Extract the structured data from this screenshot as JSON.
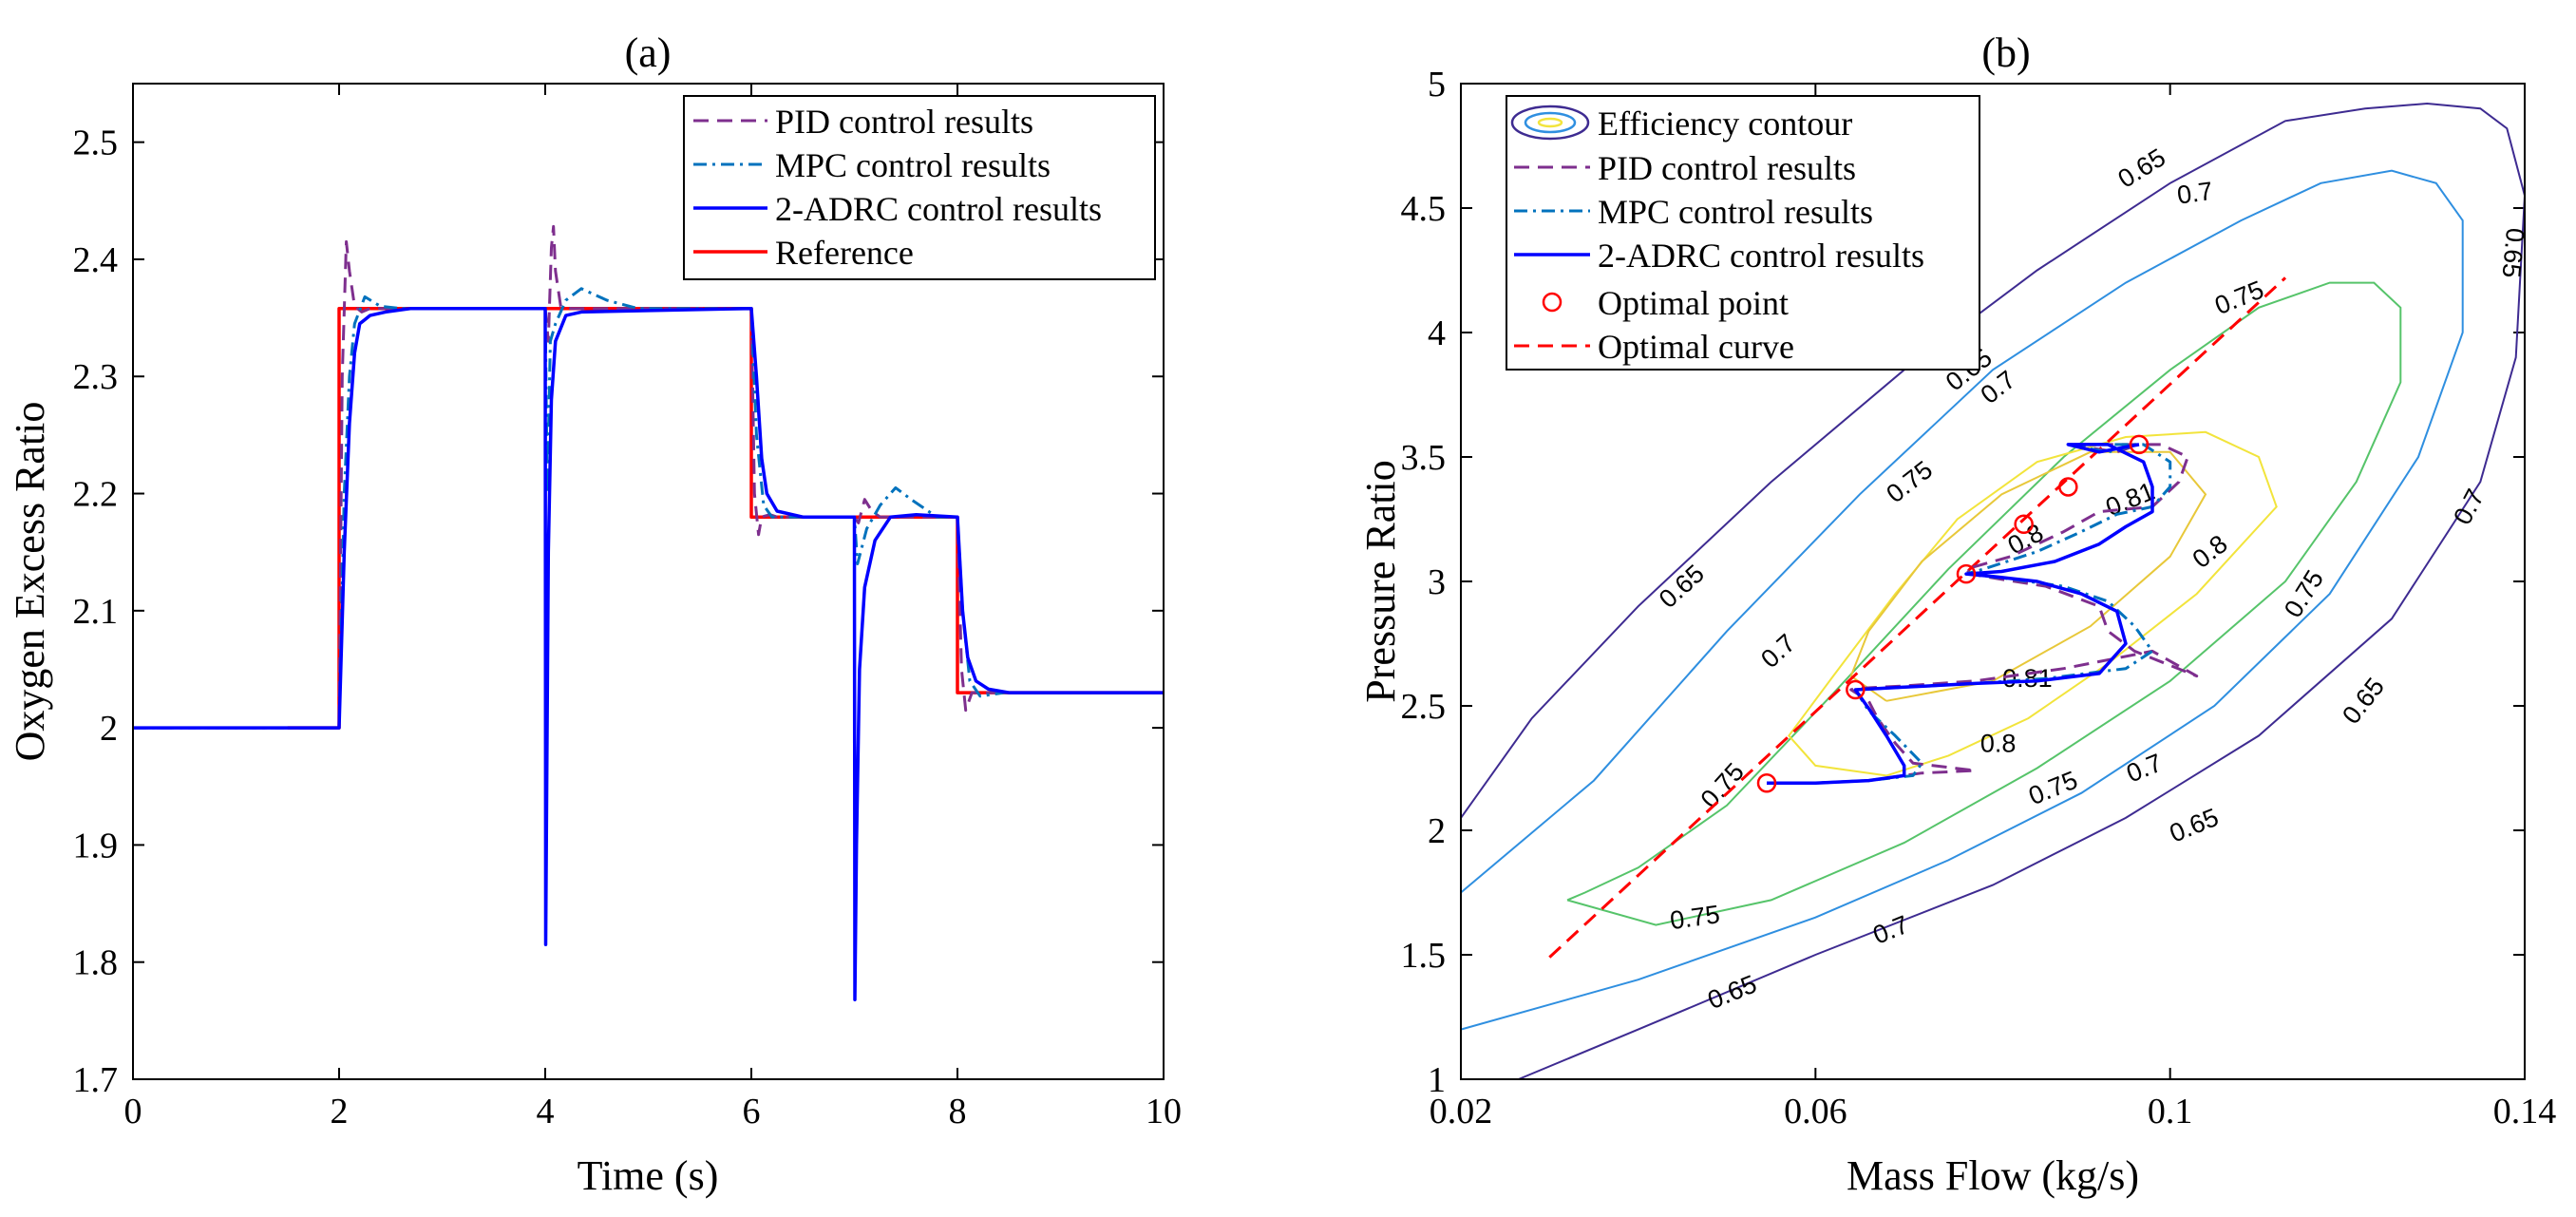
{
  "colors": {
    "pid": "#7E2F8E",
    "mpc": "#0072BD",
    "adrc": "#0000FF",
    "reference": "#FF0000",
    "optimal": "#FF0000",
    "contour_065": "#3E2B91",
    "contour_07": "#2F8FE0",
    "contour_075": "#56C46A",
    "contour_08": "#F2E43C",
    "contour_081": "#E8C83A"
  },
  "chart_data": [
    {
      "type": "line",
      "title": "(a)",
      "xlabel": "Time (s)",
      "ylabel": "Oxygen Excess Ratio",
      "xlim": [
        0,
        10
      ],
      "ylim": [
        1.7,
        2.55
      ],
      "xticks": [
        "0",
        "2",
        "4",
        "6",
        "8",
        "10"
      ],
      "yticks": [
        "1.7",
        "1.8",
        "1.9",
        "2",
        "2.1",
        "2.2",
        "2.3",
        "2.4",
        "2.5"
      ],
      "legend": [
        "PID control results",
        "MPC control results",
        "2-ADRC control results",
        "Reference"
      ],
      "legend_position": "top-right",
      "series": [
        {
          "name": "PID control results",
          "style": "dashed",
          "x": [
            0,
            2,
            2.03,
            2.07,
            2.1,
            2.15,
            2.22,
            2.3,
            4,
            4.03,
            4.06,
            4.08,
            4.1,
            4.15,
            4.25,
            6,
            6.03,
            6.07,
            6.1,
            6.18,
            6.25,
            7,
            7.04,
            7.1,
            7.17,
            7.25,
            7.4,
            8,
            8.04,
            8.08,
            8.14,
            8.25,
            10
          ],
          "y": [
            2,
            2,
            2.3,
            2.415,
            2.39,
            2.36,
            2.355,
            2.358,
            2.358,
            2.33,
            2.41,
            2.428,
            2.39,
            2.36,
            2.358,
            2.358,
            2.2,
            2.165,
            2.18,
            2.182,
            2.18,
            2.18,
            2.175,
            2.195,
            2.185,
            2.18,
            2.18,
            2.18,
            2.05,
            2.015,
            2.03,
            2.03,
            2.03
          ]
        },
        {
          "name": "MPC control results",
          "style": "dashdot",
          "x": [
            0,
            2,
            2.05,
            2.1,
            2.15,
            2.25,
            2.4,
            2.6,
            4,
            4.02,
            4.05,
            4.1,
            4.2,
            4.35,
            4.6,
            4.9,
            6,
            6.05,
            6.12,
            6.2,
            6.35,
            7,
            7.03,
            7.12,
            7.25,
            7.4,
            7.55,
            7.8,
            8,
            8.05,
            8.12,
            8.22,
            8.45,
            10
          ],
          "y": [
            2,
            2,
            2.2,
            2.3,
            2.345,
            2.368,
            2.36,
            2.358,
            2.358,
            2.2,
            2.33,
            2.345,
            2.365,
            2.375,
            2.365,
            2.358,
            2.358,
            2.25,
            2.19,
            2.18,
            2.18,
            2.18,
            2.14,
            2.17,
            2.19,
            2.205,
            2.195,
            2.18,
            2.18,
            2.1,
            2.04,
            2.027,
            2.03,
            2.03
          ]
        },
        {
          "name": "2-ADRC control results",
          "style": "solid",
          "x": [
            0,
            2,
            2.05,
            2.1,
            2.15,
            2.2,
            2.3,
            2.45,
            2.7,
            4,
            4.005,
            4.015,
            4.03,
            4.06,
            4.1,
            4.2,
            4.35,
            6,
            6.05,
            6.1,
            6.15,
            6.25,
            6.5,
            7,
            7.005,
            7.02,
            7.05,
            7.1,
            7.2,
            7.35,
            7.6,
            8,
            8.05,
            8.1,
            8.18,
            8.3,
            8.5,
            10
          ],
          "y": [
            2,
            2,
            2.15,
            2.26,
            2.32,
            2.345,
            2.352,
            2.355,
            2.358,
            2.358,
            1.815,
            1.95,
            2.15,
            2.28,
            2.33,
            2.352,
            2.355,
            2.358,
            2.3,
            2.23,
            2.2,
            2.185,
            2.18,
            2.18,
            1.768,
            1.9,
            2.05,
            2.12,
            2.16,
            2.18,
            2.182,
            2.18,
            2.1,
            2.06,
            2.04,
            2.033,
            2.03,
            2.03
          ]
        },
        {
          "name": "Reference",
          "style": "solid",
          "x": [
            1.5,
            2,
            2,
            6,
            6,
            8,
            8,
            10
          ],
          "y": [
            2,
            2,
            2.358,
            2.358,
            2.18,
            2.18,
            2.03,
            2.03
          ]
        }
      ]
    },
    {
      "type": "line",
      "title": "(b)",
      "xlabel": "Mass Flow (kg/s)",
      "ylabel": "Pressure Ratio",
      "xlim": [
        0.02,
        0.14
      ],
      "ylim": [
        1,
        5
      ],
      "xticks": [
        "0.02",
        "0.06",
        "0.1",
        "0.14"
      ],
      "yticks": [
        "1",
        "1.5",
        "2",
        "2.5",
        "3",
        "3.5",
        "4",
        "4.5",
        "5"
      ],
      "legend": [
        "Efficiency contour",
        "PID control results",
        "MPC control results",
        "2-ADRC control results",
        "Optimal point",
        "Optimal curve"
      ],
      "legend_position": "top-left",
      "contours": [
        {
          "level": "0.65",
          "label_text": [
            "0.65",
            "0.65",
            "0.65",
            "0.65",
            "0.65",
            "0.65",
            "0.65"
          ],
          "x": [
            0.0265,
            0.04,
            0.06,
            0.08,
            0.095,
            0.11,
            0.125,
            0.135,
            0.139,
            0.14,
            0.138,
            0.135,
            0.129,
            0.122,
            0.113,
            0.1,
            0.085,
            0.07,
            0.055,
            0.04,
            0.028,
            0.02
          ],
          "y": [
            1,
            1.2,
            1.5,
            1.78,
            2.05,
            2.38,
            2.85,
            3.4,
            3.9,
            4.55,
            4.82,
            4.9,
            4.92,
            4.9,
            4.85,
            4.6,
            4.25,
            3.85,
            3.4,
            2.9,
            2.45,
            2.05
          ]
        },
        {
          "level": "0.7",
          "label_text": [
            "0.7",
            "0.7",
            "0.7",
            "0.7",
            "0.7",
            "0.7"
          ],
          "x": [
            0.02,
            0.04,
            0.06,
            0.075,
            0.09,
            0.105,
            0.118,
            0.128,
            0.133,
            0.133,
            0.13,
            0.125,
            0.117,
            0.108,
            0.095,
            0.08,
            0.065,
            0.05,
            0.035,
            0.02
          ],
          "y": [
            1.2,
            1.4,
            1.65,
            1.88,
            2.15,
            2.5,
            2.95,
            3.5,
            4,
            4.45,
            4.6,
            4.65,
            4.6,
            4.45,
            4.2,
            3.85,
            3.35,
            2.8,
            2.2,
            1.75
          ]
        },
        {
          "level": "0.75",
          "label_text": [
            "0.75",
            "0.75",
            "0.75",
            "0.75",
            "0.75",
            "0.75",
            "0.75"
          ],
          "x": [
            0.032,
            0.042,
            0.055,
            0.07,
            0.085,
            0.1,
            0.113,
            0.121,
            0.126,
            0.126,
            0.123,
            0.118,
            0.11,
            0.1,
            0.088,
            0.075,
            0.062,
            0.05,
            0.04,
            0.034,
            0.032
          ],
          "y": [
            1.72,
            1.62,
            1.72,
            1.95,
            2.25,
            2.6,
            3,
            3.4,
            3.8,
            4.1,
            4.2,
            4.2,
            4.1,
            3.85,
            3.5,
            3.05,
            2.55,
            2.1,
            1.85,
            1.75,
            1.72
          ]
        },
        {
          "level": "0.8",
          "label_text": [
            "0.8",
            "0.8",
            "0.8"
          ],
          "x": [
            0.068,
            0.075,
            0.084,
            0.093,
            0.103,
            0.112,
            0.11,
            0.104,
            0.095,
            0.085,
            0.076,
            0.069,
            0.062,
            0.057,
            0.06,
            0.068
          ],
          "y": [
            2.22,
            2.3,
            2.45,
            2.67,
            2.95,
            3.3,
            3.5,
            3.6,
            3.58,
            3.48,
            3.25,
            2.95,
            2.62,
            2.38,
            2.26,
            2.22
          ]
        },
        {
          "level": "0.81",
          "label_text": [
            "0.81",
            "0.81"
          ],
          "x": [
            0.068,
            0.08,
            0.091,
            0.1,
            0.104,
            0.1,
            0.091,
            0.081,
            0.072,
            0.066,
            0.064,
            0.068
          ],
          "y": [
            2.52,
            2.6,
            2.82,
            3.1,
            3.35,
            3.52,
            3.52,
            3.35,
            3.08,
            2.8,
            2.62,
            2.52
          ]
        }
      ],
      "series": [
        {
          "name": "PID control results",
          "style": "dashed",
          "x": [
            0.0545,
            0.06,
            0.066,
            0.072,
            0.078,
            0.071,
            0.069,
            0.067,
            0.066,
            0.064,
            0.0645,
            0.07,
            0.078,
            0.088,
            0.098,
            0.103,
            0.096,
            0.093,
            0.092,
            0.086,
            0.079,
            0.0775,
            0.077,
            0.082,
            0.088,
            0.092,
            0.098,
            0.101,
            0.102,
            0.099,
            0.092,
            0.0885,
            0.094,
            0.0965
          ],
          "y": [
            2.19,
            2.19,
            2.2,
            2.23,
            2.24,
            2.27,
            2.35,
            2.45,
            2.52,
            2.565,
            2.57,
            2.58,
            2.6,
            2.65,
            2.72,
            2.62,
            2.72,
            2.8,
            2.9,
            2.98,
            3.02,
            3.03,
            3.05,
            3.1,
            3.2,
            3.28,
            3.3,
            3.4,
            3.5,
            3.55,
            3.55,
            3.55,
            3.52,
            3.55
          ]
        },
        {
          "name": "MPC control results",
          "style": "dashdot",
          "x": [
            0.0545,
            0.06,
            0.066,
            0.071,
            0.072,
            0.069,
            0.066,
            0.0645,
            0.07,
            0.078,
            0.086,
            0.095,
            0.098,
            0.096,
            0.093,
            0.088,
            0.082,
            0.077,
            0.079,
            0.085,
            0.09,
            0.094,
            0.098,
            0.1,
            0.1,
            0.097,
            0.092,
            0.0885,
            0.093,
            0.0965
          ],
          "y": [
            2.19,
            2.19,
            2.2,
            2.22,
            2.27,
            2.38,
            2.48,
            2.565,
            2.575,
            2.59,
            2.61,
            2.65,
            2.72,
            2.82,
            2.92,
            2.98,
            3.01,
            3.03,
            3.05,
            3.12,
            3.2,
            3.27,
            3.3,
            3.38,
            3.48,
            3.55,
            3.55,
            3.55,
            3.52,
            3.55
          ]
        },
        {
          "name": "2-ADRC control results",
          "style": "solid",
          "x": [
            0.0545,
            0.06,
            0.066,
            0.07,
            0.07,
            0.068,
            0.066,
            0.0645,
            0.07,
            0.078,
            0.085,
            0.092,
            0.095,
            0.094,
            0.09,
            0.085,
            0.08,
            0.077,
            0.081,
            0.087,
            0.092,
            0.095,
            0.098,
            0.098,
            0.097,
            0.093,
            0.089,
            0.0885,
            0.092,
            0.0965
          ],
          "y": [
            2.19,
            2.19,
            2.2,
            2.22,
            2.26,
            2.38,
            2.49,
            2.565,
            2.575,
            2.59,
            2.6,
            2.63,
            2.75,
            2.88,
            2.95,
            3,
            3.02,
            3.03,
            3.04,
            3.08,
            3.15,
            3.22,
            3.28,
            3.38,
            3.48,
            3.55,
            3.55,
            3.55,
            3.52,
            3.55
          ]
        }
      ],
      "optimal_points": {
        "name": "Optimal point",
        "x": [
          0.0545,
          0.0645,
          0.077,
          0.0835,
          0.0885,
          0.0965
        ],
        "y": [
          2.19,
          2.565,
          3.03,
          3.23,
          3.38,
          3.55
        ]
      },
      "optimal_curve": {
        "name": "Optimal curve",
        "style": "dashed",
        "x": [
          0.03,
          0.113
        ],
        "y": [
          1.49,
          4.22
        ]
      }
    }
  ]
}
